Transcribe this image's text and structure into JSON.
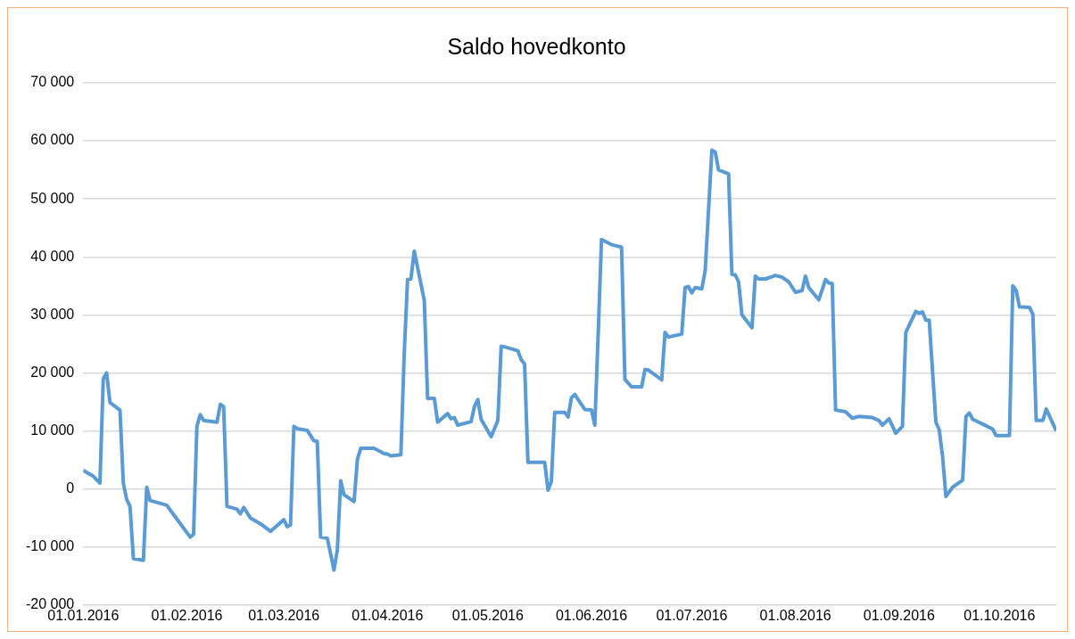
{
  "chart_data": {
    "type": "line",
    "title": "Saldo hovedkonto",
    "x": [
      "2016-01-01",
      "2016-01-04",
      "2016-01-06",
      "2016-01-07",
      "2016-01-08",
      "2016-01-09",
      "2016-01-12",
      "2016-01-13",
      "2016-01-14",
      "2016-01-15",
      "2016-01-16",
      "2016-01-19",
      "2016-01-20",
      "2016-01-21",
      "2016-01-26",
      "2016-01-27",
      "2016-01-28",
      "2016-02-02",
      "2016-02-03",
      "2016-02-04",
      "2016-02-05",
      "2016-02-06",
      "2016-02-10",
      "2016-02-11",
      "2016-02-12",
      "2016-02-13",
      "2016-02-16",
      "2016-02-17",
      "2016-02-18",
      "2016-02-20",
      "2016-02-23",
      "2016-02-26",
      "2016-03-01",
      "2016-03-02",
      "2016-03-03",
      "2016-03-04",
      "2016-03-05",
      "2016-03-08",
      "2016-03-10",
      "2016-03-11",
      "2016-03-12",
      "2016-03-14",
      "2016-03-16",
      "2016-03-17",
      "2016-03-18",
      "2016-03-19",
      "2016-03-22",
      "2016-03-23",
      "2016-03-24",
      "2016-03-28",
      "2016-03-31",
      "2016-04-01",
      "2016-04-02",
      "2016-04-05",
      "2016-04-06",
      "2016-04-07",
      "2016-04-08",
      "2016-04-09",
      "2016-04-12",
      "2016-04-13",
      "2016-04-15",
      "2016-04-16",
      "2016-04-19",
      "2016-04-20",
      "2016-04-21",
      "2016-04-22",
      "2016-04-26",
      "2016-04-27",
      "2016-04-28",
      "2016-04-29",
      "2016-04-30",
      "2016-05-02",
      "2016-05-04",
      "2016-05-05",
      "2016-05-06",
      "2016-05-10",
      "2016-05-11",
      "2016-05-12",
      "2016-05-13",
      "2016-05-18",
      "2016-05-19",
      "2016-05-20",
      "2016-05-21",
      "2016-05-24",
      "2016-05-25",
      "2016-05-26",
      "2016-05-27",
      "2016-05-30",
      "2016-06-01",
      "2016-06-02",
      "2016-06-03",
      "2016-06-04",
      "2016-06-07",
      "2016-06-10",
      "2016-06-11",
      "2016-06-13",
      "2016-06-16",
      "2016-06-17",
      "2016-06-18",
      "2016-06-22",
      "2016-06-23",
      "2016-06-24",
      "2016-06-28",
      "2016-06-29",
      "2016-06-30",
      "2016-07-01",
      "2016-07-02",
      "2016-07-04",
      "2016-07-05",
      "2016-07-07",
      "2016-07-08",
      "2016-07-09",
      "2016-07-12",
      "2016-07-13",
      "2016-07-14",
      "2016-07-15",
      "2016-07-16",
      "2016-07-19",
      "2016-07-20",
      "2016-07-21",
      "2016-07-23",
      "2016-07-26",
      "2016-07-28",
      "2016-07-30",
      "2016-08-01",
      "2016-08-03",
      "2016-08-04",
      "2016-08-05",
      "2016-08-08",
      "2016-08-10",
      "2016-08-11",
      "2016-08-12",
      "2016-08-13",
      "2016-08-16",
      "2016-08-18",
      "2016-08-20",
      "2016-08-24",
      "2016-08-26",
      "2016-08-27",
      "2016-08-29",
      "2016-08-31",
      "2016-09-02",
      "2016-09-03",
      "2016-09-06",
      "2016-09-07",
      "2016-09-08",
      "2016-09-09",
      "2016-09-10",
      "2016-09-12",
      "2016-09-13",
      "2016-09-14",
      "2016-09-15",
      "2016-09-17",
      "2016-09-20",
      "2016-09-21",
      "2016-09-22",
      "2016-09-23",
      "2016-09-27",
      "2016-09-29",
      "2016-09-30",
      "2016-10-04",
      "2016-10-05",
      "2016-10-06",
      "2016-10-07",
      "2016-10-10",
      "2016-10-11",
      "2016-10-12",
      "2016-10-14",
      "2016-10-15",
      "2016-10-18"
    ],
    "series": [
      {
        "color": "#5b9bd5",
        "values": [
          3200,
          2200,
          1000,
          19000,
          20000,
          14900,
          13600,
          1000,
          -1800,
          -3000,
          -12000,
          -12300,
          300,
          -2000,
          -2800,
          -3600,
          -4400,
          -8300,
          -7800,
          10800,
          12800,
          11800,
          11500,
          14600,
          14200,
          -3000,
          -3500,
          -4300,
          -3200,
          -5000,
          -6000,
          -7300,
          -5300,
          -6500,
          -6200,
          10800,
          10400,
          10100,
          8300,
          8200,
          -8300,
          -8500,
          -14000,
          -10500,
          1400,
          -1000,
          -2200,
          5100,
          7000,
          7000,
          6100,
          6000,
          5700,
          5900,
          23300,
          36100,
          36200,
          41000,
          32500,
          15600,
          15600,
          11500,
          13000,
          12100,
          12300,
          11000,
          11600,
          14200,
          15400,
          12000,
          11000,
          9000,
          11800,
          24600,
          24500,
          23800,
          22300,
          21500,
          4600,
          4600,
          -200,
          1300,
          13200,
          13200,
          12400,
          15700,
          16300,
          13700,
          13600,
          11000,
          26600,
          43000,
          42100,
          41700,
          18900,
          17600,
          17600,
          20600,
          20500,
          18800,
          27000,
          26200,
          26700,
          34700,
          34900,
          33800,
          34700,
          34500,
          37600,
          58400,
          58100,
          55000,
          54300,
          37000,
          36900,
          35700,
          30000,
          27800,
          36700,
          36200,
          36200,
          36800,
          36500,
          35700,
          33900,
          34200,
          36700,
          34700,
          32600,
          36100,
          35500,
          35400,
          13600,
          13300,
          12200,
          12500,
          12300,
          11800,
          11000,
          12100,
          9600,
          10800,
          27000,
          30600,
          30300,
          30500,
          29100,
          29100,
          11500,
          10200,
          5600,
          -1300,
          300,
          1500,
          12500,
          13100,
          12000,
          10900,
          10300,
          9200,
          9200,
          35000,
          34200,
          31400,
          31300,
          30100,
          11800,
          11800,
          13800,
          10000
        ]
      }
    ],
    "xlim": [
      "2016-01-01",
      "2016-10-18"
    ],
    "xticks": [
      {
        "value": "2016-01-01",
        "label": "01.01.2016"
      },
      {
        "value": "2016-02-01",
        "label": "01.02.2016"
      },
      {
        "value": "2016-03-01",
        "label": "01.03.2016"
      },
      {
        "value": "2016-04-01",
        "label": "01.04.2016"
      },
      {
        "value": "2016-05-01",
        "label": "01.05.2016"
      },
      {
        "value": "2016-06-01",
        "label": "01.06.2016"
      },
      {
        "value": "2016-07-01",
        "label": "01.07.2016"
      },
      {
        "value": "2016-08-01",
        "label": "01.08.2016"
      },
      {
        "value": "2016-09-01",
        "label": "01.09.2016"
      },
      {
        "value": "2016-10-01",
        "label": "01.10.2016"
      }
    ],
    "ylim": [
      -20000,
      70000
    ],
    "yticks": [
      {
        "value": -20000,
        "label": "-20 000"
      },
      {
        "value": -10000,
        "label": "-10 000"
      },
      0,
      {
        "value": 10000,
        "label": "10 000"
      },
      {
        "value": 20000,
        "label": "20 000"
      },
      {
        "value": 30000,
        "label": "30 000"
      },
      {
        "value": 40000,
        "label": "40 000"
      },
      {
        "value": 50000,
        "label": "50 000"
      },
      {
        "value": 60000,
        "label": "60 000"
      },
      {
        "value": 70000,
        "label": "70 000"
      }
    ],
    "grid": "y",
    "legend": false,
    "marker": "none",
    "line_style": "solid"
  }
}
